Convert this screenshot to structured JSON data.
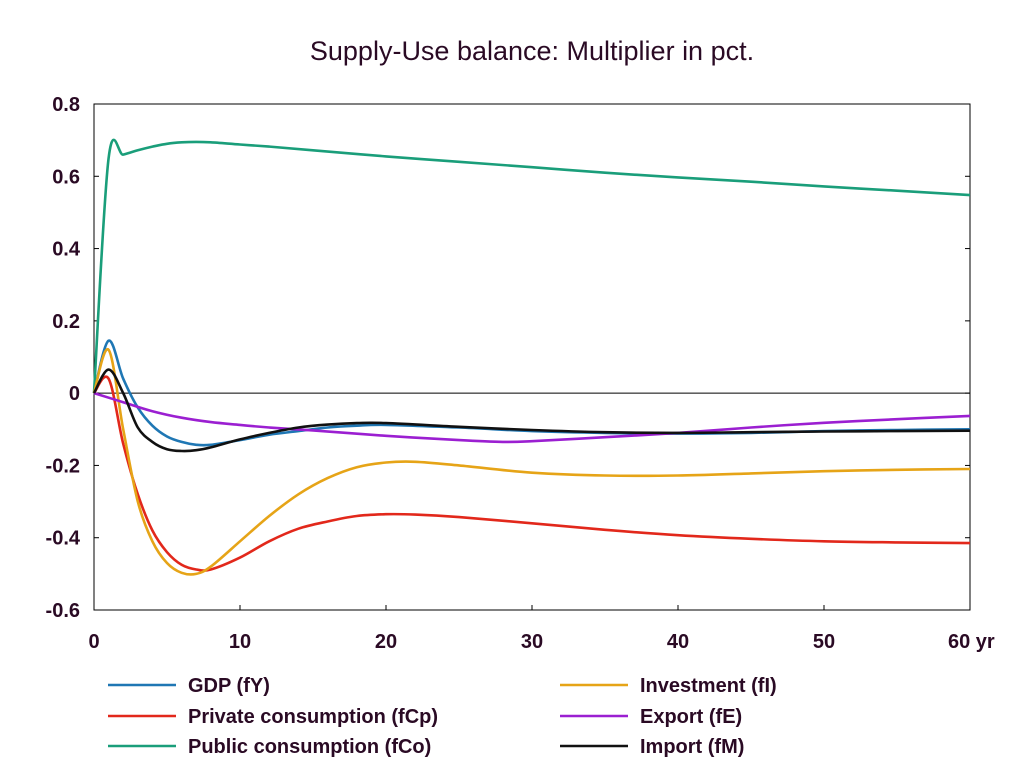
{
  "chart_data": {
    "type": "line",
    "title": "Supply-Use balance: Multiplier in pct.",
    "xlabel": "",
    "ylabel": "",
    "x_unit_label": "yr",
    "xlim": [
      0,
      60
    ],
    "ylim": [
      -0.6,
      0.8
    ],
    "x_ticks": [
      0,
      10,
      20,
      30,
      40,
      50,
      60
    ],
    "x_tick_labels": [
      "0",
      "10",
      "20",
      "30",
      "40",
      "50",
      "60 yr"
    ],
    "y_ticks": [
      -0.6,
      -0.4,
      -0.2,
      0,
      0.2,
      0.4,
      0.6,
      0.8
    ],
    "y_tick_labels": [
      "-0.6",
      "-0.4",
      "-0.2",
      "0",
      "0.2",
      "0.4",
      "0.6",
      "0.8"
    ],
    "grid": false,
    "zero_line": true,
    "legend_position": "bottom",
    "series": [
      {
        "name": "GDP (fY)",
        "color": "#1f77b4",
        "points": [
          [
            0,
            0
          ],
          [
            1,
            0.145
          ],
          [
            2,
            0.04
          ],
          [
            3,
            -0.04
          ],
          [
            4,
            -0.09
          ],
          [
            5,
            -0.12
          ],
          [
            6,
            -0.135
          ],
          [
            7,
            -0.143
          ],
          [
            8,
            -0.143
          ],
          [
            10,
            -0.13
          ],
          [
            12,
            -0.115
          ],
          [
            14,
            -0.105
          ],
          [
            16,
            -0.095
          ],
          [
            18,
            -0.09
          ],
          [
            20,
            -0.088
          ],
          [
            25,
            -0.095
          ],
          [
            30,
            -0.105
          ],
          [
            35,
            -0.11
          ],
          [
            40,
            -0.112
          ],
          [
            45,
            -0.11
          ],
          [
            50,
            -0.105
          ],
          [
            55,
            -0.102
          ],
          [
            60,
            -0.1
          ]
        ]
      },
      {
        "name": "Private consumption (fCp)",
        "color": "#e2281b",
        "points": [
          [
            0,
            0
          ],
          [
            1,
            0.04
          ],
          [
            2,
            -0.14
          ],
          [
            3,
            -0.28
          ],
          [
            4,
            -0.38
          ],
          [
            5,
            -0.44
          ],
          [
            6,
            -0.475
          ],
          [
            7,
            -0.488
          ],
          [
            8,
            -0.488
          ],
          [
            10,
            -0.455
          ],
          [
            12,
            -0.41
          ],
          [
            14,
            -0.375
          ],
          [
            16,
            -0.355
          ],
          [
            18,
            -0.34
          ],
          [
            20,
            -0.335
          ],
          [
            22,
            -0.336
          ],
          [
            25,
            -0.343
          ],
          [
            30,
            -0.36
          ],
          [
            35,
            -0.378
          ],
          [
            40,
            -0.393
          ],
          [
            45,
            -0.403
          ],
          [
            50,
            -0.41
          ],
          [
            55,
            -0.413
          ],
          [
            60,
            -0.415
          ]
        ]
      },
      {
        "name": "Public consumption (fCo)",
        "color": "#1a9e7a",
        "points": [
          [
            0,
            0
          ],
          [
            1,
            0.65
          ],
          [
            2,
            0.66
          ],
          [
            3,
            0.672
          ],
          [
            4,
            0.682
          ],
          [
            5,
            0.69
          ],
          [
            6,
            0.694
          ],
          [
            7,
            0.695
          ],
          [
            8,
            0.694
          ],
          [
            10,
            0.688
          ],
          [
            12,
            0.682
          ],
          [
            15,
            0.672
          ],
          [
            20,
            0.655
          ],
          [
            25,
            0.64
          ],
          [
            30,
            0.625
          ],
          [
            35,
            0.61
          ],
          [
            40,
            0.597
          ],
          [
            45,
            0.585
          ],
          [
            50,
            0.572
          ],
          [
            55,
            0.56
          ],
          [
            60,
            0.548
          ]
        ]
      },
      {
        "name": "Investment (fI)",
        "color": "#e6a417",
        "points": [
          [
            0,
            0
          ],
          [
            1,
            0.12
          ],
          [
            2,
            -0.1
          ],
          [
            3,
            -0.3
          ],
          [
            4,
            -0.41
          ],
          [
            5,
            -0.47
          ],
          [
            6,
            -0.497
          ],
          [
            7,
            -0.5
          ],
          [
            8,
            -0.48
          ],
          [
            10,
            -0.41
          ],
          [
            12,
            -0.34
          ],
          [
            14,
            -0.28
          ],
          [
            16,
            -0.235
          ],
          [
            18,
            -0.205
          ],
          [
            20,
            -0.192
          ],
          [
            22,
            -0.19
          ],
          [
            25,
            -0.2
          ],
          [
            30,
            -0.22
          ],
          [
            35,
            -0.228
          ],
          [
            40,
            -0.228
          ],
          [
            45,
            -0.222
          ],
          [
            50,
            -0.216
          ],
          [
            55,
            -0.212
          ],
          [
            60,
            -0.21
          ]
        ]
      },
      {
        "name": "Export (fE)",
        "color": "#9b1fd1",
        "points": [
          [
            0,
            0
          ],
          [
            2,
            -0.025
          ],
          [
            4,
            -0.05
          ],
          [
            6,
            -0.068
          ],
          [
            8,
            -0.08
          ],
          [
            10,
            -0.088
          ],
          [
            12,
            -0.095
          ],
          [
            15,
            -0.103
          ],
          [
            20,
            -0.118
          ],
          [
            25,
            -0.13
          ],
          [
            28,
            -0.135
          ],
          [
            30,
            -0.133
          ],
          [
            35,
            -0.122
          ],
          [
            40,
            -0.11
          ],
          [
            45,
            -0.095
          ],
          [
            50,
            -0.082
          ],
          [
            55,
            -0.072
          ],
          [
            60,
            -0.063
          ]
        ]
      },
      {
        "name": "Import (fM)",
        "color": "#111111",
        "points": [
          [
            0,
            0
          ],
          [
            1,
            0.065
          ],
          [
            2,
            0.0
          ],
          [
            3,
            -0.095
          ],
          [
            4,
            -0.135
          ],
          [
            5,
            -0.155
          ],
          [
            6,
            -0.16
          ],
          [
            7,
            -0.158
          ],
          [
            8,
            -0.15
          ],
          [
            10,
            -0.128
          ],
          [
            12,
            -0.11
          ],
          [
            14,
            -0.095
          ],
          [
            16,
            -0.087
          ],
          [
            18,
            -0.083
          ],
          [
            20,
            -0.083
          ],
          [
            25,
            -0.093
          ],
          [
            30,
            -0.102
          ],
          [
            35,
            -0.108
          ],
          [
            40,
            -0.11
          ],
          [
            45,
            -0.108
          ],
          [
            50,
            -0.106
          ],
          [
            55,
            -0.105
          ],
          [
            60,
            -0.104
          ]
        ]
      }
    ]
  }
}
